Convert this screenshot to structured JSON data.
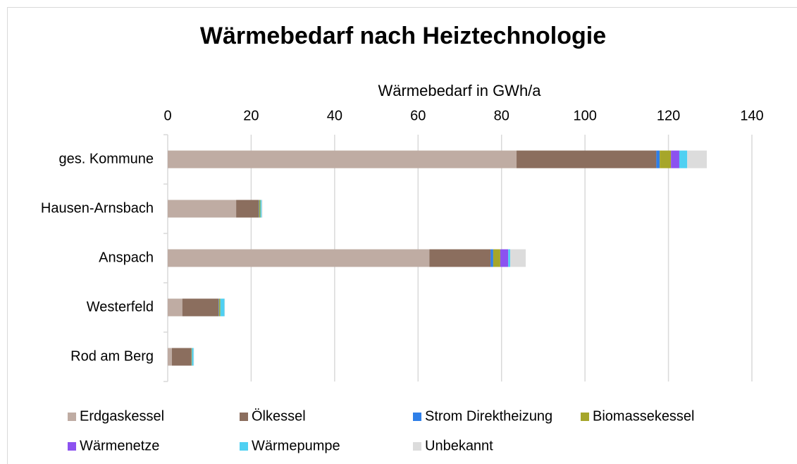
{
  "chart_data": {
    "type": "barh_stacked",
    "title": "Wärmebedarf nach Heiztechnologie",
    "x_label": "Wärmebedarf in GWh/a",
    "categories": [
      "ges. Kommune",
      "Hausen-Arnsbach",
      "Anspach",
      "Westerfeld",
      "Rod am Berg"
    ],
    "series": [
      {
        "name": "Erdgaskessel",
        "color": "#bfaca3",
        "values": [
          83.6,
          16.4,
          62.7,
          3.5,
          1.0
        ]
      },
      {
        "name": "Ölkessel",
        "color": "#8b6e5e",
        "values": [
          33.5,
          5.4,
          14.7,
          8.7,
          4.7
        ]
      },
      {
        "name": "Strom Direktheizung",
        "color": "#2f7fe8",
        "values": [
          0.8,
          0.1,
          0.6,
          0.1,
          0
        ]
      },
      {
        "name": "Biomassekessel",
        "color": "#a6a62a",
        "values": [
          2.7,
          0.3,
          1.7,
          0.3,
          0.1
        ]
      },
      {
        "name": "Wärmenetze",
        "color": "#8c52f0",
        "values": [
          2.0,
          0,
          1.9,
          0,
          0
        ]
      },
      {
        "name": "Wärmepumpe",
        "color": "#4fd0f2",
        "values": [
          1.9,
          0.3,
          0.5,
          1.0,
          0.4
        ]
      },
      {
        "name": "Unbekannt",
        "color": "#dcdcdc",
        "values": [
          4.7,
          0.2,
          3.7,
          0.1,
          0.1
        ]
      }
    ],
    "xlim": [
      0,
      140
    ],
    "xticks": [
      0,
      20,
      40,
      60,
      80,
      100,
      120,
      140
    ],
    "grid": true,
    "legend": "bottom"
  }
}
